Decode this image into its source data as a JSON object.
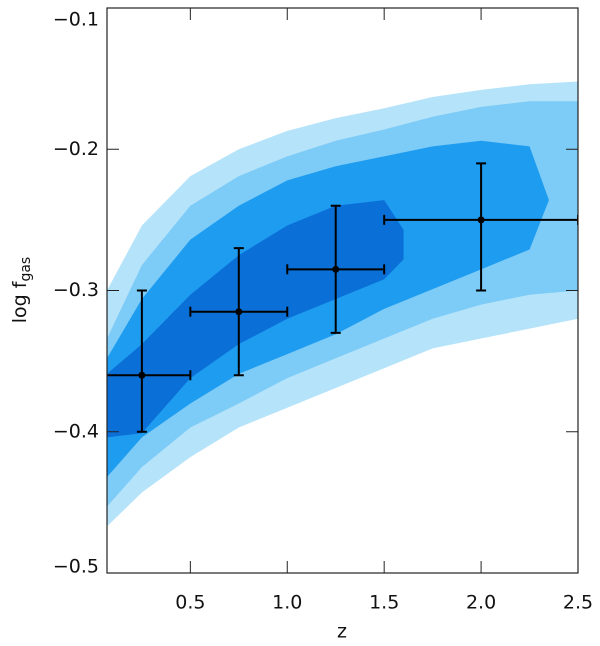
{
  "chart_data": {
    "type": "scatter",
    "xlabel": "z",
    "ylabel": "log f",
    "ylabel_subscript": "gas",
    "xlim": [
      0.07,
      2.5
    ],
    "ylim": [
      -0.5,
      -0.1
    ],
    "xticks": [
      0.5,
      {
        "value": 1,
        "label": "1.0"
      },
      1.5,
      {
        "value": 2,
        "label": "2.0"
      },
      2.5
    ],
    "yticks": [
      {
        "value": -0.1,
        "label": "−0.1"
      },
      {
        "value": -0.2,
        "label": "−0.2"
      },
      {
        "value": -0.3,
        "label": "−0.3"
      },
      {
        "value": -0.4,
        "label": "−0.4"
      },
      {
        "value": -0.5,
        "label": "−0.5"
      }
    ],
    "contours": [
      {
        "color": "#b5e3fa",
        "x": [
          0.07,
          0.25,
          0.5,
          0.75,
          1.0,
          1.25,
          1.5,
          1.75,
          2.0,
          2.25,
          2.5
        ],
        "upper": [
          -0.3,
          -0.254,
          -0.219,
          -0.2,
          -0.187,
          -0.178,
          -0.171,
          -0.163,
          -0.158,
          -0.154,
          -0.152
        ],
        "lower": [
          -0.467,
          -0.443,
          -0.418,
          -0.397,
          -0.383,
          -0.369,
          -0.355,
          -0.341,
          -0.334,
          -0.327,
          -0.32
        ]
      },
      {
        "color": "#7dcbf7",
        "x": [
          0.07,
          0.25,
          0.5,
          0.75,
          1.0,
          1.25,
          1.5,
          1.75,
          2.0,
          2.25,
          2.5
        ],
        "upper": [
          -0.334,
          -0.282,
          -0.24,
          -0.219,
          -0.205,
          -0.194,
          -0.186,
          -0.177,
          -0.17,
          -0.166,
          -0.166
        ],
        "lower": [
          -0.453,
          -0.425,
          -0.397,
          -0.38,
          -0.362,
          -0.348,
          -0.334,
          -0.32,
          -0.31,
          -0.303,
          -0.3
        ]
      },
      {
        "color": "#1d9cf0",
        "x": [
          0.07,
          0.25,
          0.5,
          0.75,
          1.0,
          1.25,
          1.5,
          1.75,
          2.0,
          2.25,
          2.35
        ],
        "upper": [
          -0.348,
          -0.306,
          -0.264,
          -0.24,
          -0.222,
          -0.212,
          -0.205,
          -0.198,
          -0.194,
          -0.198,
          -0.236
        ],
        "lower": [
          -0.432,
          -0.404,
          -0.38,
          -0.359,
          -0.345,
          -0.331,
          -0.313,
          -0.299,
          -0.285,
          -0.271,
          -0.236
        ]
      },
      {
        "color": "#0b6fd8",
        "x": [
          0.07,
          0.25,
          0.5,
          0.75,
          1.0,
          1.25,
          1.5,
          1.6
        ],
        "upper": [
          -0.359,
          -0.338,
          -0.303,
          -0.275,
          -0.254,
          -0.24,
          -0.236,
          -0.257
        ],
        "lower": [
          -0.404,
          -0.401,
          -0.362,
          -0.338,
          -0.32,
          -0.306,
          -0.292,
          -0.278
        ]
      }
    ],
    "points": {
      "color": "#000000",
      "x": [
        0.25,
        0.75,
        1.25,
        2.0
      ],
      "y": [
        -0.36,
        -0.315,
        -0.285,
        -0.25
      ],
      "xerr": [
        0.25,
        0.25,
        0.25,
        0.5
      ],
      "yerr_lower": [
        0.04,
        0.045,
        0.045,
        0.05
      ],
      "yerr_upper": [
        0.06,
        0.045,
        0.045,
        0.04
      ]
    }
  }
}
